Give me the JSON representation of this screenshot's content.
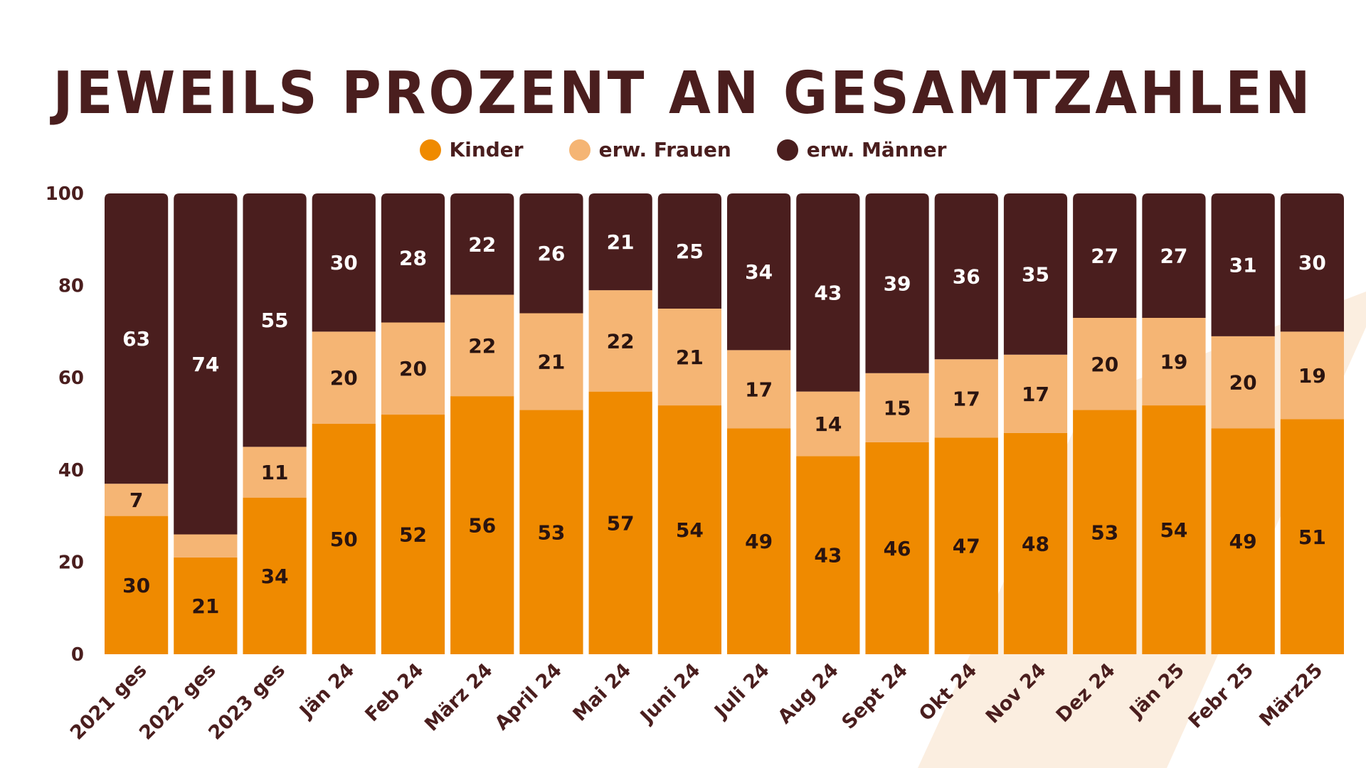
{
  "title": "JEWEILS PROZENT AN GESAMTZAHLEN",
  "colors": {
    "kinder": "#ef8a00",
    "frauen": "#f5b574",
    "maenner": "#4a1e1e",
    "text_dark": "#2a1410",
    "text_light": "#ffffff"
  },
  "chart_data": {
    "type": "bar",
    "stacked": true,
    "title": "JEWEILS PROZENT AN GESAMTZAHLEN",
    "ylim": [
      0,
      100
    ],
    "yticks": [
      0,
      20,
      40,
      60,
      80,
      100
    ],
    "legend_position": "top-center",
    "grid": false,
    "categories": [
      "2021 ges",
      "2022 ges",
      "2023 ges",
      "Jän 24",
      "Feb 24",
      "März 24",
      "April 24",
      "Mai 24",
      "Juni 24",
      "Juli 24",
      "Aug 24",
      "Sept 24",
      "Okt 24",
      "Nov 24",
      "Dez 24",
      "Jän 25",
      "Febr 25",
      "März25"
    ],
    "series": [
      {
        "name": "Kinder",
        "values": [
          30,
          21,
          34,
          50,
          52,
          56,
          53,
          57,
          54,
          49,
          43,
          46,
          47,
          48,
          53,
          54,
          49,
          51
        ],
        "labels": [
          "30",
          "21",
          "34",
          "50",
          "52",
          "56",
          "53",
          "57",
          "54",
          "49",
          "43",
          "46",
          "47",
          "48",
          "53",
          "54",
          "49",
          "51"
        ]
      },
      {
        "name": "erw. Frauen",
        "values": [
          7,
          5,
          11,
          20,
          20,
          22,
          21,
          22,
          21,
          17,
          14,
          15,
          17,
          17,
          20,
          19,
          20,
          19
        ],
        "labels": [
          "7",
          "",
          "11",
          "20",
          "20",
          "22",
          "21",
          "22",
          "21",
          "17",
          "14",
          "15",
          "17",
          "17",
          "20",
          "19",
          "20",
          "19"
        ]
      },
      {
        "name": "erw. Männer",
        "values": [
          63,
          74,
          55,
          30,
          28,
          22,
          26,
          21,
          25,
          34,
          43,
          39,
          36,
          35,
          27,
          27,
          31,
          30
        ],
        "labels": [
          "63",
          "74",
          "55",
          "30",
          "28",
          "22",
          "26",
          "21",
          "25",
          "34",
          "43",
          "39",
          "36",
          "35",
          "27",
          "27",
          "31",
          "30"
        ]
      }
    ]
  }
}
